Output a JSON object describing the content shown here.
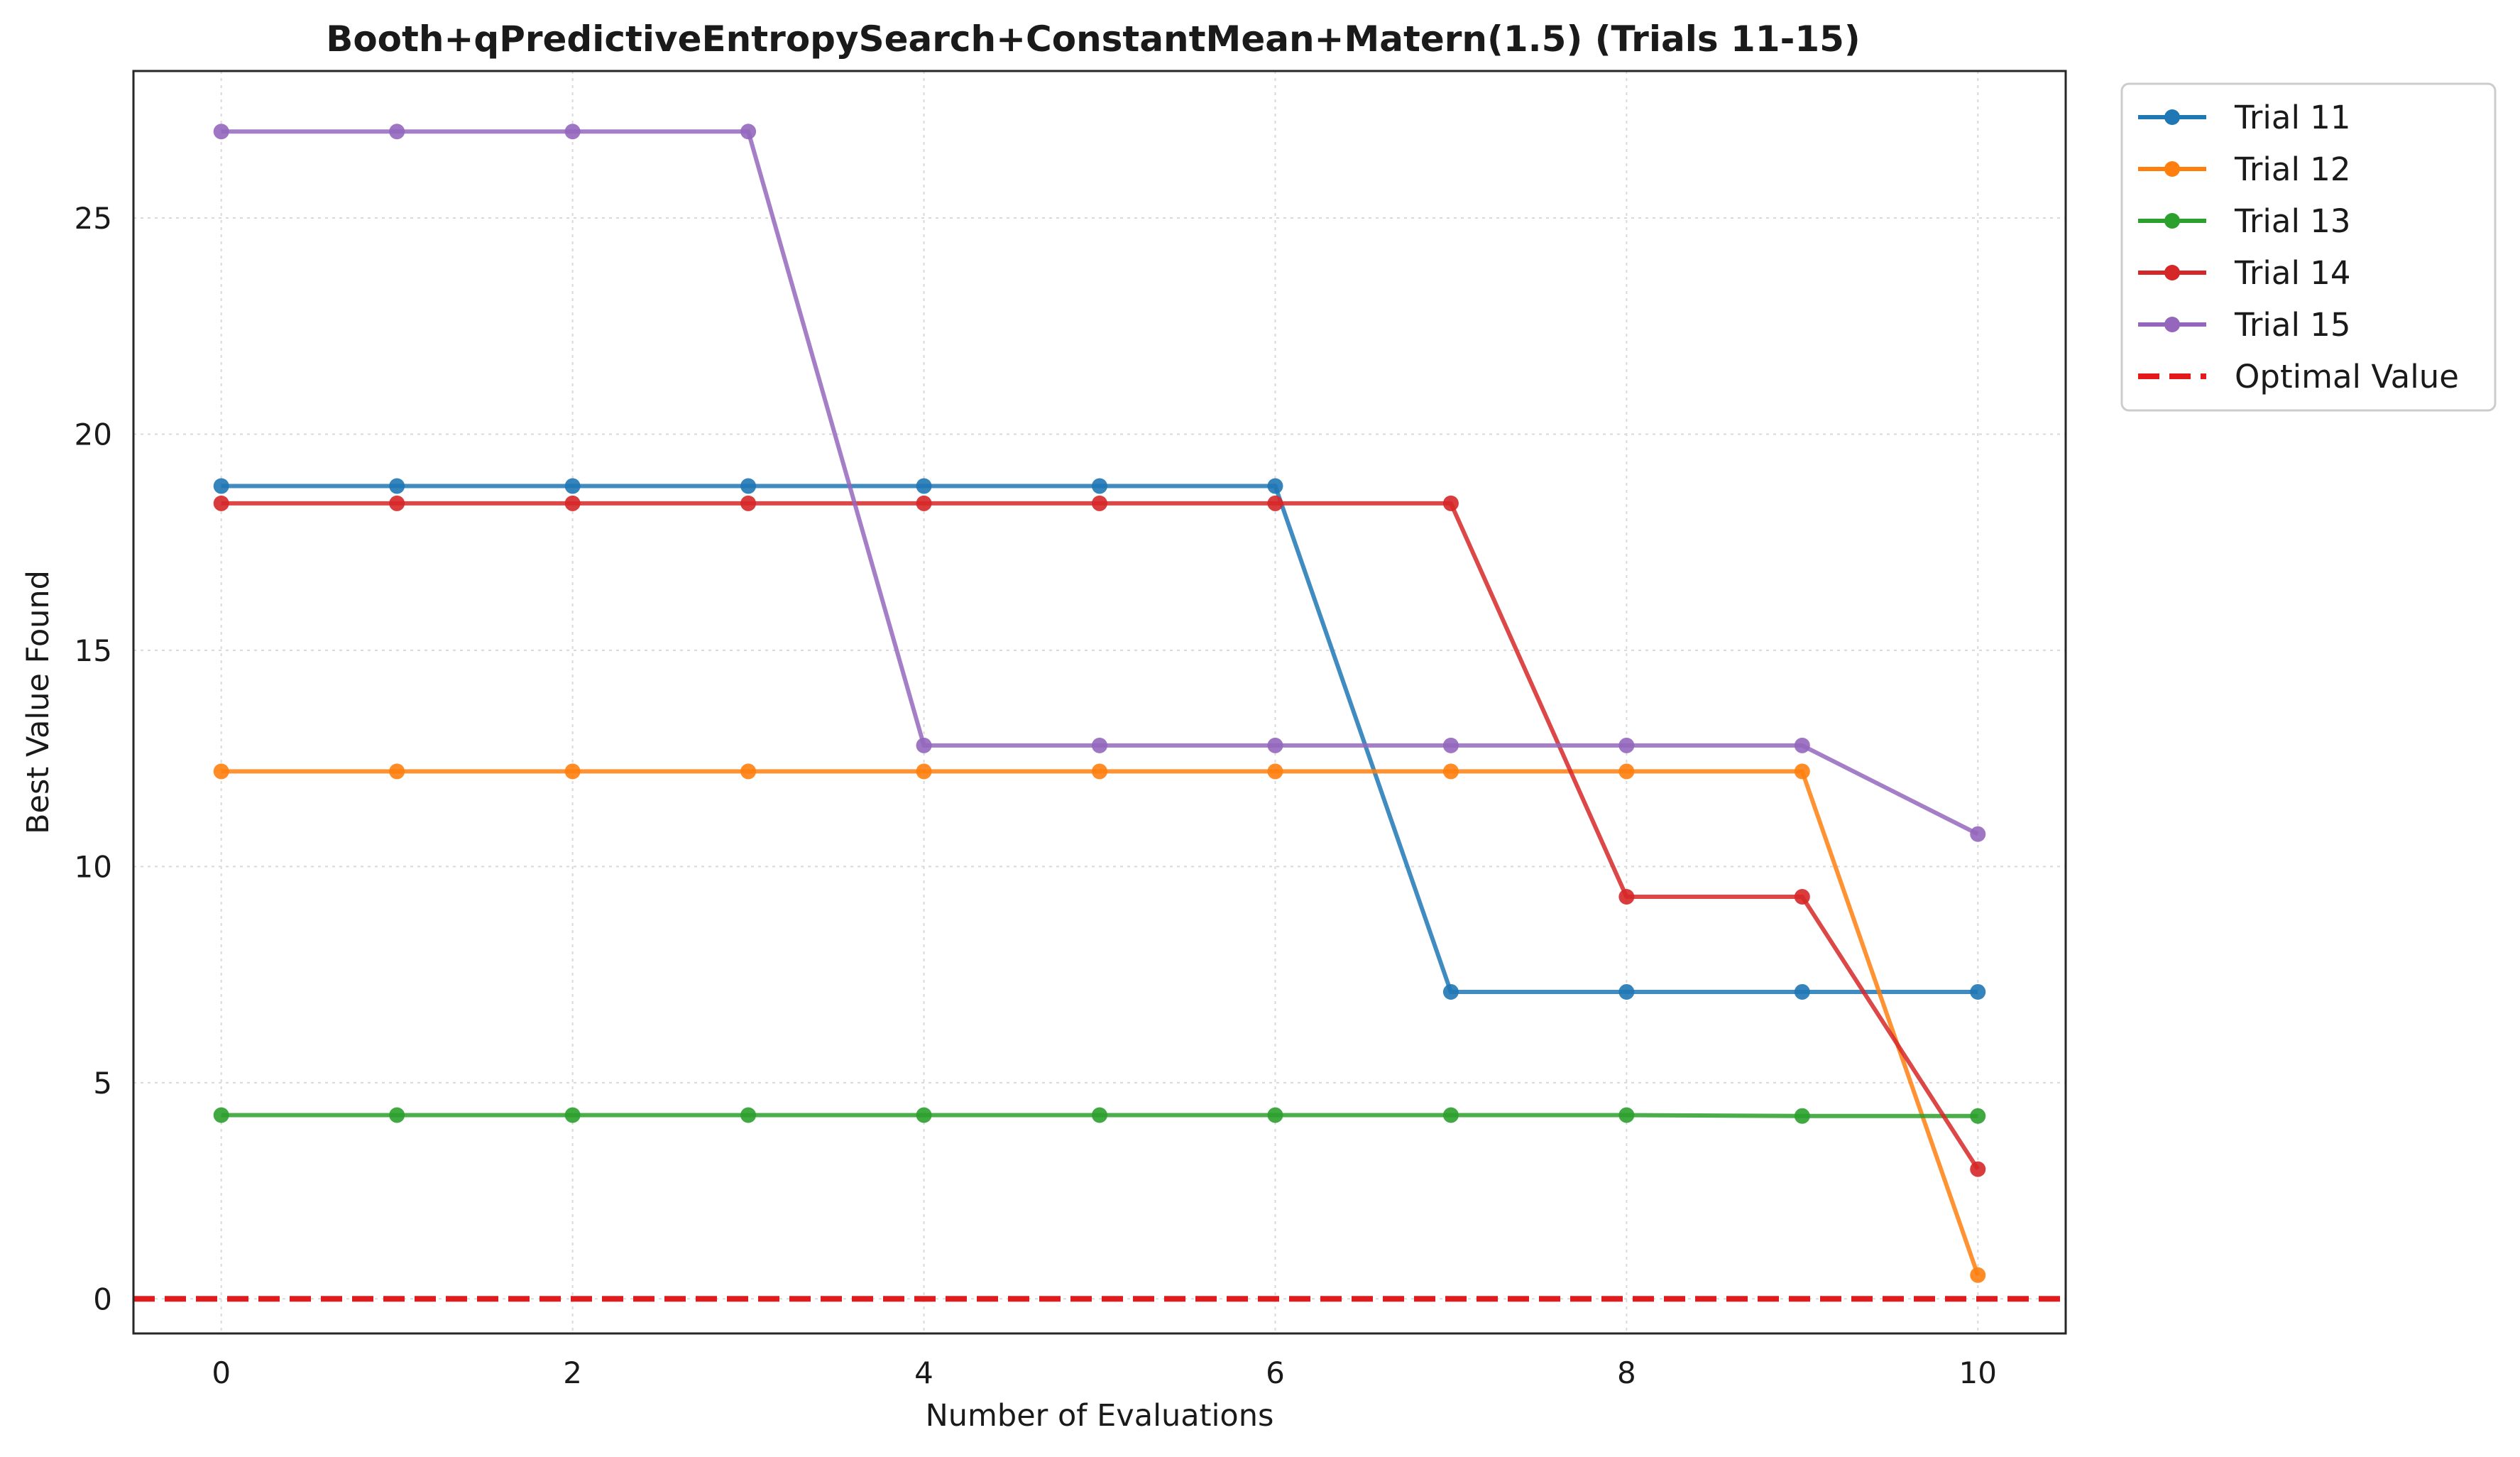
{
  "chart_data": {
    "type": "line",
    "title": "Booth+qPredictiveEntropySearch+ConstantMean+Matern(1.5) (Trials 11-15)",
    "xlabel": "Number of Evaluations",
    "ylabel": "Best Value Found",
    "xlim": [
      -0.5,
      10.5
    ],
    "ylim": [
      -0.8,
      28.4
    ],
    "xticks": [
      0,
      2,
      4,
      6,
      8,
      10
    ],
    "yticks": [
      0,
      5,
      10,
      15,
      20,
      25
    ],
    "grid": true,
    "legend_position": "outside-top-right",
    "x": [
      0,
      1,
      2,
      3,
      4,
      5,
      6,
      7,
      8,
      9,
      10
    ],
    "series": [
      {
        "name": "Trial 11",
        "color": "#1f77b4",
        "values": [
          18.8,
          18.8,
          18.8,
          18.8,
          18.8,
          18.8,
          18.8,
          7.1,
          7.1,
          7.1,
          7.1
        ]
      },
      {
        "name": "Trial 12",
        "color": "#ff7f0e",
        "values": [
          12.2,
          12.2,
          12.2,
          12.2,
          12.2,
          12.2,
          12.2,
          12.2,
          12.2,
          12.2,
          0.55
        ]
      },
      {
        "name": "Trial 13",
        "color": "#2ca02c",
        "values": [
          4.25,
          4.25,
          4.25,
          4.25,
          4.25,
          4.25,
          4.25,
          4.25,
          4.25,
          4.23,
          4.23
        ]
      },
      {
        "name": "Trial 14",
        "color": "#d62728",
        "values": [
          18.4,
          18.4,
          18.4,
          18.4,
          18.4,
          18.4,
          18.4,
          18.4,
          9.3,
          9.3,
          3.0
        ]
      },
      {
        "name": "Trial 15",
        "color": "#9467bd",
        "values": [
          27.0,
          27.0,
          27.0,
          27.0,
          12.8,
          12.8,
          12.8,
          12.8,
          12.8,
          12.8,
          10.75
        ]
      }
    ],
    "reference_line": {
      "name": "Optimal Value",
      "y": 0,
      "color": "#e31a1c",
      "style": "dashed"
    }
  }
}
